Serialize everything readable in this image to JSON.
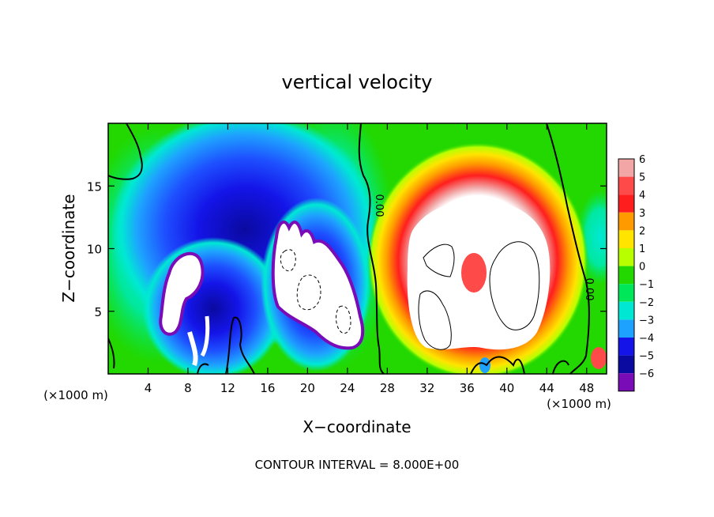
{
  "chart_data": {
    "type": "heatmap",
    "title": "vertical velocity",
    "xlabel": "X−coordinate",
    "ylabel": "Z−coordinate",
    "x_unit_left": "(×1000 m)",
    "x_unit_right": "(×1000 m)",
    "xlim": [
      0,
      50
    ],
    "ylim": [
      0,
      20
    ],
    "x_ticks": [
      "4",
      "8",
      "12",
      "16",
      "20",
      "24",
      "28",
      "32",
      "36",
      "40",
      "44",
      "48"
    ],
    "x_tick_values": [
      4,
      8,
      12,
      16,
      20,
      24,
      28,
      32,
      36,
      40,
      44,
      48
    ],
    "y_ticks": [
      "5",
      "10",
      "15"
    ],
    "y_tick_values": [
      5,
      10,
      15
    ],
    "contour_labels": [
      {
        "text": "0.00",
        "x": 26.5,
        "z": 13.5
      },
      {
        "text": "0.00",
        "x": 47.0,
        "z": 7.0
      }
    ],
    "colorbar": {
      "labels": [
        "6",
        "5",
        "4",
        "3",
        "2",
        "1",
        "0",
        "−1",
        "−2",
        "−3",
        "−4",
        "−5",
        "−6"
      ],
      "values": [
        6,
        5,
        4,
        3,
        2,
        1,
        0,
        -1,
        -2,
        -3,
        -4,
        -5,
        -6
      ],
      "colors": [
        "#f2a6a6",
        "#ff4a4a",
        "#ff1e1e",
        "#ff9a00",
        "#ffe400",
        "#b8ff00",
        "#22d800",
        "#00e85a",
        "#00e8d4",
        "#1ea2ff",
        "#1414e8",
        "#0a0aa0",
        "#7a0cb8"
      ]
    },
    "footer": "CONTOUR INTERVAL = 8.000E+00"
  }
}
